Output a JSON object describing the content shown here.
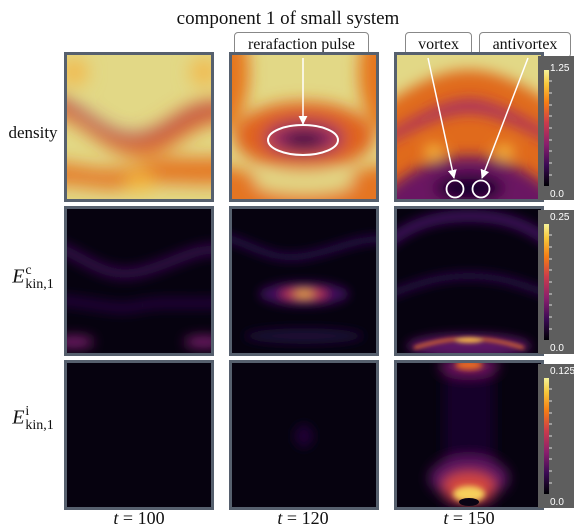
{
  "title": "component 1 of small system",
  "rows": {
    "density": "density",
    "compressible": {
      "symbol": "E",
      "sup": "c",
      "sub": "kin,1"
    },
    "incompressible": {
      "symbol": "E",
      "sup": "i",
      "sub": "kin,1"
    }
  },
  "time_symbol": "t",
  "columns": [
    "= 100",
    "= 120",
    "= 150"
  ],
  "annotations": {
    "rarefaction": "rerafaction pulse",
    "vortex": "vortex",
    "antivortex": "antivortex"
  },
  "colorbars": [
    {
      "max": "1.25",
      "min": "0.0"
    },
    {
      "max": "0.25",
      "min": "0.0"
    },
    {
      "max": "0.125",
      "min": "0.0"
    }
  ],
  "colors": {
    "frame": "#56606e",
    "colorbar_bg": "#5e5e5e",
    "callout_border": "#888888",
    "colormap": [
      "#000004",
      "#3b0a54",
      "#8a1f6d",
      "#cc3d4a",
      "#f57d15",
      "#f7c83b",
      "#e6e19a"
    ]
  }
}
